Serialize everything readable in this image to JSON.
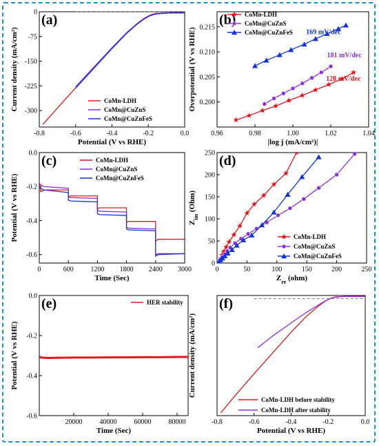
{
  "colors": {
    "red": "#e3161c",
    "purple": "#8b2fdb",
    "blue": "#1233d6",
    "frame": "#1f8fd6",
    "dash": "#555555"
  },
  "chart_data": [
    {
      "id": "a",
      "type": "line",
      "panel_label": "(a)",
      "xlabel": "Potential (V vs RHE)",
      "ylabel": "Current density (mA/cm²)",
      "xlim": [
        -0.8,
        0.0
      ],
      "ylim": [
        -350,
        0
      ],
      "xticks": [
        -0.8,
        -0.6,
        -0.4,
        -0.2,
        0.0
      ],
      "xtick_labels": [
        "-0.8",
        "-0.6",
        "-0.4",
        "-0.2",
        "0.0"
      ],
      "yticks": [
        0,
        -75,
        -150,
        -225,
        -300
      ],
      "ytick_labels": [
        "0",
        "-75",
        "-150",
        "-225",
        "-300"
      ],
      "reference_line": 0,
      "legend_position": "bottom-right",
      "series": [
        {
          "name": "CoMn-LDH",
          "color": "red",
          "x": [
            -0.78,
            -0.7,
            -0.6,
            -0.5,
            -0.4,
            -0.32,
            -0.26,
            -0.22,
            -0.19,
            -0.16,
            -0.12,
            -0.08,
            0.0
          ],
          "y": [
            -342,
            -292,
            -231,
            -170,
            -110,
            -64,
            -35,
            -19,
            -10,
            -5,
            -4,
            -3,
            -2
          ]
        },
        {
          "name": "CoMn@CuZnS",
          "color": "purple",
          "x": [
            -0.6,
            -0.5,
            -0.4,
            -0.32,
            -0.26,
            -0.22,
            -0.19,
            -0.16,
            -0.12,
            -0.08,
            0.0
          ],
          "y": [
            -228,
            -168,
            -109,
            -64,
            -36,
            -20,
            -11,
            -6,
            -4,
            -3,
            -3
          ]
        },
        {
          "name": "CoMn@CuZnFeS",
          "color": "blue",
          "x": [
            -0.6,
            -0.5,
            -0.4,
            -0.32,
            -0.26,
            -0.22,
            -0.19,
            -0.16,
            -0.12,
            -0.08,
            0.0
          ],
          "y": [
            -232,
            -172,
            -112,
            -66,
            -37,
            -21,
            -12,
            -7,
            -5,
            -4,
            -4
          ]
        }
      ]
    },
    {
      "id": "b",
      "type": "line",
      "panel_label": "(b)",
      "xlabel": "|log j (mA/cm²)|",
      "ylabel": "Overpotential (V vs RHE)",
      "xlim": [
        0.96,
        1.04
      ],
      "ylim": [
        0.195,
        0.218
      ],
      "xticks": [
        0.96,
        0.98,
        1.0,
        1.02,
        1.04
      ],
      "xtick_labels": [
        "0.96",
        "0.98",
        "1.00",
        "1.02",
        "1.04"
      ],
      "yticks": [
        0.2,
        0.205,
        0.21,
        0.215
      ],
      "ytick_labels": [
        "0.200",
        "0.205",
        "0.210",
        "0.215"
      ],
      "legend_position": "top-left",
      "annotations": [
        {
          "text": "169 mV/dec",
          "color": "blue",
          "x": 1.007,
          "y": 0.2135
        },
        {
          "text": "181 mV/dec",
          "color": "purple",
          "x": 1.018,
          "y": 0.2089
        },
        {
          "text": "128 mV/dec",
          "color": "red",
          "x": 1.0175,
          "y": 0.2042
        }
      ],
      "series": [
        {
          "name": "CoMn-LDH",
          "color": "red",
          "marker": "star",
          "x": [
            0.97,
            0.977,
            0.984,
            0.991,
            0.998,
            1.005,
            1.012,
            1.019,
            1.026,
            1.032
          ],
          "y": [
            0.1964,
            0.1973,
            0.1983,
            0.1992,
            0.2003,
            0.2013,
            0.2024,
            0.2035,
            0.2046,
            0.2059
          ]
        },
        {
          "name": "CoMn@CuZnS",
          "color": "purple",
          "marker": "circle",
          "x": [
            0.985,
            0.99,
            0.995,
            1.0,
            1.005,
            1.01,
            1.015,
            1.02
          ],
          "y": [
            0.1996,
            0.2007,
            0.2017,
            0.2027,
            0.2037,
            0.2048,
            0.2059,
            0.2071
          ]
        },
        {
          "name": "CoMn@CuZnFeS",
          "color": "blue",
          "marker": "triangle",
          "x": [
            0.98,
            0.986,
            0.993,
            0.999,
            1.006,
            1.012,
            1.018,
            1.024,
            1.028
          ],
          "y": [
            0.2072,
            0.2083,
            0.2094,
            0.2104,
            0.2115,
            0.2126,
            0.2136,
            0.2146,
            0.2153
          ]
        }
      ]
    },
    {
      "id": "c",
      "type": "line",
      "panel_label": "(c)",
      "xlabel": "Time (Sec)",
      "ylabel": "Potential (V vs RHE)",
      "xlim": [
        0,
        3000
      ],
      "ylim": [
        -0.65,
        0.0
      ],
      "xticks": [
        0,
        600,
        1200,
        1800,
        2400,
        3000
      ],
      "xtick_labels": [
        "0",
        "600",
        "1200",
        "1800",
        "2400",
        "3000"
      ],
      "yticks": [
        0.0,
        -0.2,
        -0.4,
        -0.6
      ],
      "ytick_labels": [
        "0.0",
        "-0.2",
        "-0.4",
        "-0.6"
      ],
      "legend_position": "top-right",
      "series": [
        {
          "name": "CoMn-LDH",
          "color": "red",
          "x": [
            0,
            30,
            100,
            599,
            600,
            650,
            1199,
            1200,
            1250,
            1799,
            1800,
            1850,
            2399,
            2400,
            2450,
            3000
          ],
          "y": [
            -0.17,
            -0.23,
            -0.22,
            -0.22,
            -0.26,
            -0.255,
            -0.255,
            -0.33,
            -0.325,
            -0.325,
            -0.41,
            -0.405,
            -0.405,
            -0.52,
            -0.51,
            -0.51
          ]
        },
        {
          "name": "CoMn@CuZnS",
          "color": "purple",
          "x": [
            0,
            30,
            100,
            599,
            600,
            650,
            1199,
            1200,
            1250,
            1799,
            1800,
            1850,
            2399,
            2400,
            2450,
            3000
          ],
          "y": [
            -0.18,
            -0.19,
            -0.2,
            -0.21,
            -0.26,
            -0.265,
            -0.27,
            -0.34,
            -0.345,
            -0.35,
            -0.44,
            -0.445,
            -0.45,
            -0.6,
            -0.595,
            -0.595
          ]
        },
        {
          "name": "CoMn@CuZnFeS",
          "color": "blue",
          "x": [
            0,
            30,
            100,
            599,
            600,
            650,
            1199,
            1200,
            1250,
            1799,
            1800,
            1850,
            2399,
            2400,
            2450,
            3000
          ],
          "y": [
            -0.2,
            -0.21,
            -0.22,
            -0.235,
            -0.28,
            -0.285,
            -0.29,
            -0.36,
            -0.365,
            -0.37,
            -0.45,
            -0.455,
            -0.46,
            -0.61,
            -0.6,
            -0.595
          ]
        }
      ]
    },
    {
      "id": "d",
      "type": "line",
      "panel_label": "(d)",
      "xlabel": "Z_re (ohm)",
      "ylabel": "Z_im (Ohm)",
      "xlim": [
        0,
        250
      ],
      "ylim": [
        0,
        250
      ],
      "xticks": [
        0,
        50,
        100,
        150,
        200,
        250
      ],
      "xtick_labels": [
        "0",
        "50",
        "100",
        "150",
        "200",
        "250"
      ],
      "yticks": [
        0,
        50,
        100,
        150,
        200,
        250
      ],
      "ytick_labels": [
        "0",
        "50",
        "100",
        "150",
        "200",
        "250"
      ],
      "legend_position": "bottom-right",
      "series": [
        {
          "name": "CoMn-LDH",
          "color": "red",
          "marker": "star",
          "x": [
            2,
            4,
            6,
            8,
            11,
            15,
            20,
            28,
            38,
            50,
            62,
            78,
            95,
            115,
            133
          ],
          "y": [
            2,
            6,
            11,
            18,
            26,
            36,
            48,
            64,
            84,
            113,
            133,
            153,
            178,
            203,
            250
          ]
        },
        {
          "name": "CoMn@CuZnS",
          "color": "purple",
          "marker": "circle",
          "x": [
            2,
            4,
            6,
            9,
            13,
            17,
            22,
            30,
            40,
            52,
            66,
            83,
            102,
            122,
            145,
            170,
            200,
            230
          ],
          "y": [
            2,
            5,
            9,
            14,
            20,
            27,
            35,
            45,
            55,
            66,
            78,
            92,
            108,
            124,
            145,
            170,
            200,
            247
          ]
        },
        {
          "name": "CoMn@CuZnFeS",
          "color": "blue",
          "marker": "triangle",
          "x": [
            3,
            6,
            9,
            13,
            18,
            25,
            33,
            44,
            58,
            75,
            95,
            118,
            142,
            170
          ],
          "y": [
            3,
            7,
            11,
            16,
            22,
            30,
            40,
            52,
            63,
            86,
            115,
            155,
            195,
            240
          ]
        }
      ]
    },
    {
      "id": "e",
      "type": "line",
      "panel_label": "(e)",
      "xlabel": "Time (Sec)",
      "ylabel": "Potential (V vs RHE)",
      "xlim": [
        0,
        86400
      ],
      "ylim": [
        -0.6,
        0.0
      ],
      "xticks": [
        20000,
        40000,
        60000,
        80000
      ],
      "xtick_labels": [
        "20000",
        "40000",
        "60000",
        "80000"
      ],
      "yticks": [
        0.0,
        -0.2,
        -0.4,
        -0.6
      ],
      "ytick_labels": [
        "0.0",
        "-0.2",
        "-0.4",
        "-0.6"
      ],
      "legend_position": "top-right",
      "series": [
        {
          "name": "HER stability",
          "color": "red",
          "x": [
            0,
            1000,
            5000,
            10000,
            20000,
            30000,
            40000,
            50000,
            60000,
            70000,
            80000,
            86400
          ],
          "y": [
            -0.305,
            -0.31,
            -0.312,
            -0.311,
            -0.31,
            -0.31,
            -0.309,
            -0.309,
            -0.308,
            -0.308,
            -0.307,
            -0.307
          ]
        }
      ]
    },
    {
      "id": "f",
      "type": "line",
      "panel_label": "(f)",
      "xlabel": "Potential (V vs RHE)",
      "ylabel": "Current density (mA/cm²)",
      "xlim": [
        -0.8,
        0.0
      ],
      "ylim": [
        -350,
        0
      ],
      "xticks": [
        -0.8,
        -0.6,
        -0.4,
        -0.2,
        0.0
      ],
      "xtick_labels": [
        "-0.8",
        "-0.6",
        "-0.4",
        "-0.2",
        "0.0"
      ],
      "yticks": [],
      "ytick_labels": [],
      "reference_line": -9,
      "legend_position": "bottom-right",
      "series": [
        {
          "name": "CoMn-LDH before stability",
          "color": "red",
          "x": [
            -0.78,
            -0.7,
            -0.6,
            -0.5,
            -0.4,
            -0.32,
            -0.26,
            -0.22,
            -0.19,
            -0.16,
            -0.12,
            -0.08,
            0.0
          ],
          "y": [
            -342,
            -290,
            -228,
            -167,
            -107,
            -62,
            -34,
            -18,
            -9,
            -4,
            -3,
            -2,
            -2
          ]
        },
        {
          "name": "CoMn-LDH after stability",
          "color": "purple",
          "x": [
            -0.58,
            -0.5,
            -0.4,
            -0.32,
            -0.26,
            -0.22,
            -0.19,
            -0.16,
            -0.12,
            -0.08,
            0.0
          ],
          "y": [
            -152,
            -118,
            -80,
            -50,
            -30,
            -17,
            -9,
            -5,
            -3,
            -3,
            -3
          ]
        }
      ]
    }
  ]
}
